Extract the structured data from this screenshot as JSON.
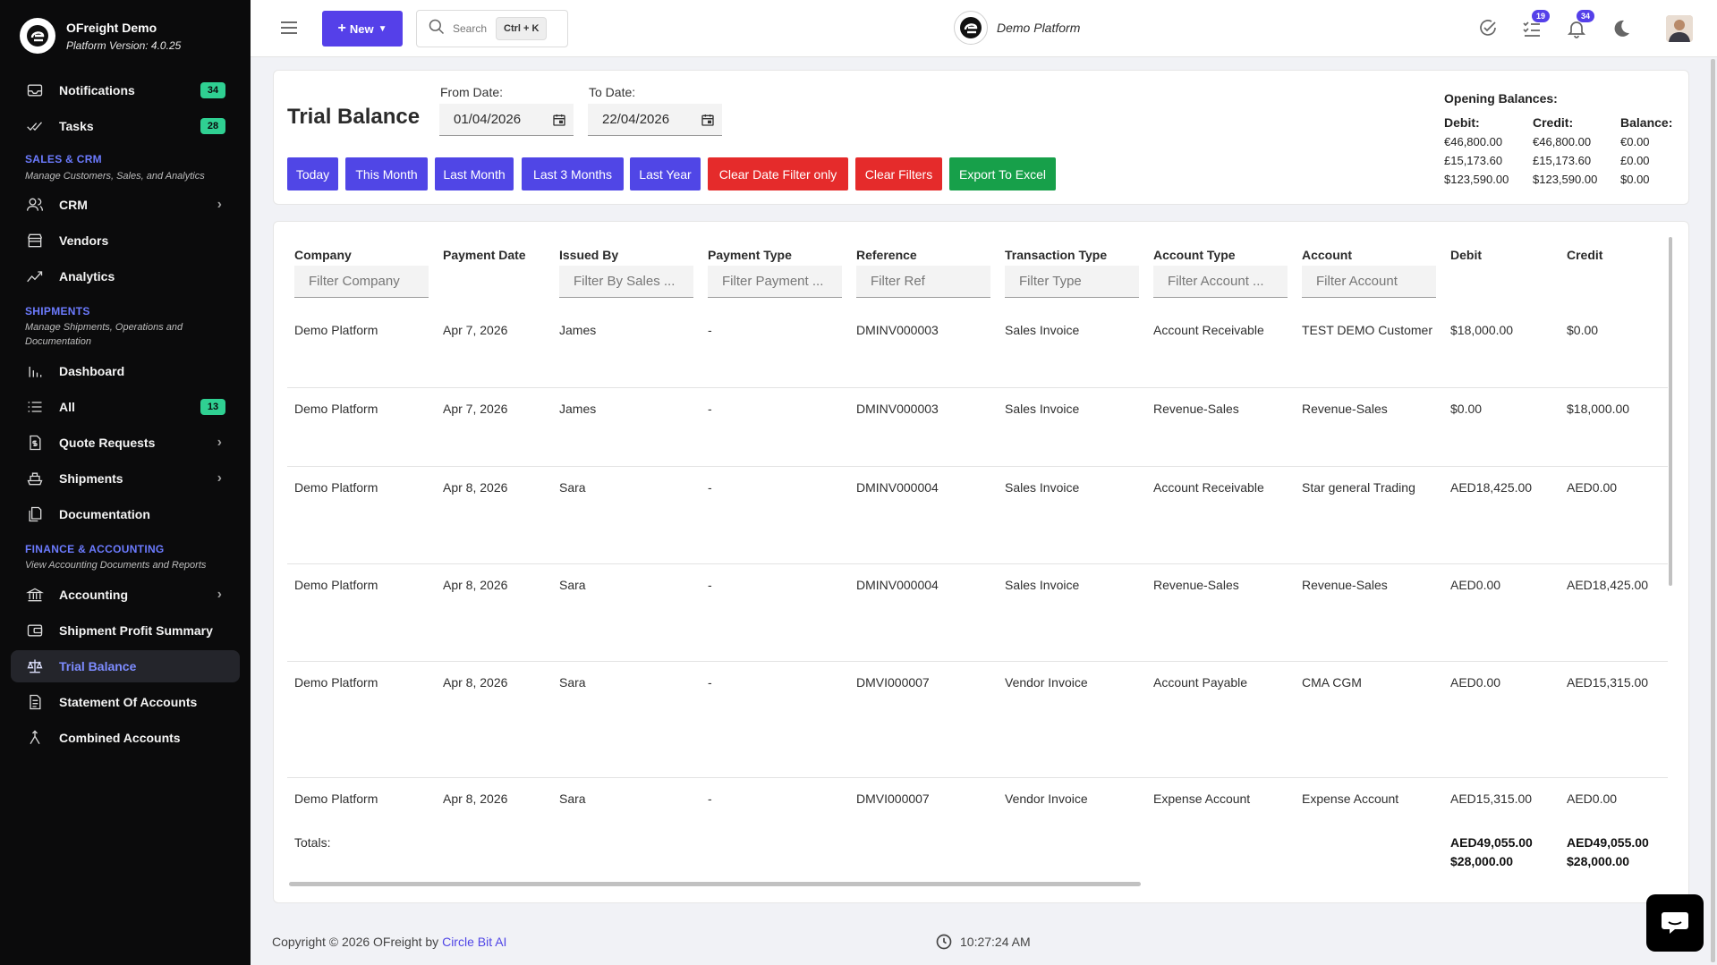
{
  "brand": {
    "name": "OFreight Demo",
    "version": "Platform Version: 4.0.25"
  },
  "sidebar": {
    "top": [
      {
        "label": "Notifications",
        "badge": "34"
      },
      {
        "label": "Tasks",
        "badge": "28"
      }
    ],
    "sales": {
      "title": "SALES & CRM",
      "subtitle": "Manage Customers, Sales, and Analytics",
      "items": [
        "CRM",
        "Vendors",
        "Analytics"
      ]
    },
    "shipments": {
      "title": "SHIPMENTS",
      "subtitle": "Manage Shipments, Operations and Documentation",
      "items": [
        "Dashboard",
        "All",
        "Quote Requests",
        "Shipments",
        "Documentation"
      ],
      "all_badge": "13"
    },
    "finance": {
      "title": "FINANCE & ACCOUNTING",
      "subtitle": "View Accounting Documents and Reports",
      "items": [
        "Accounting",
        "Shipment Profit Summary",
        "Trial Balance",
        "Statement Of Accounts",
        "Combined Accounts"
      ]
    }
  },
  "header": {
    "new_label": "New",
    "search_label": "Search",
    "search_shortcut": "Ctrl + K",
    "center_title": "Demo Platform",
    "tasks_badge": "19",
    "notifications_badge": "34"
  },
  "filters": {
    "title": "Trial Balance",
    "from_label": "From Date:",
    "from_value": "01/04/2026",
    "to_label": "To Date:",
    "to_value": "22/04/2026",
    "buttons": [
      "Today",
      "This Month",
      "Last Month",
      "Last 3 Months",
      "Last Year",
      "Clear Date Filter only",
      "Clear Filters",
      "Export To Excel"
    ]
  },
  "opening_balances": {
    "title": "Opening Balances:",
    "debit_label": "Debit:",
    "credit_label": "Credit:",
    "balance_label": "Balance:",
    "debit": [
      "€46,800.00",
      "£15,173.60",
      "$123,590.00"
    ],
    "credit": [
      "€46,800.00",
      "£15,173.60",
      "$123,590.00"
    ],
    "balance": [
      "€0.00",
      "£0.00",
      "$0.00"
    ]
  },
  "table": {
    "headers": [
      "Company",
      "Payment Date",
      "Issued By",
      "Payment Type",
      "Reference",
      "Transaction Type",
      "Account Type",
      "Account",
      "Debit",
      "Credit"
    ],
    "filters": [
      "Filter Company",
      "Filter By Sales ...",
      "Filter Payment ...",
      "Filter Ref",
      "Filter Type",
      "Filter Account ...",
      "Filter Account"
    ],
    "rows": [
      [
        "Demo Platform",
        "Apr 7, 2026",
        "James",
        "-",
        "DMINV000003",
        "Sales Invoice",
        "Account Receivable",
        "TEST DEMO Customer",
        "$18,000.00",
        "$0.00"
      ],
      [
        "Demo Platform",
        "Apr 7, 2026",
        "James",
        "-",
        "DMINV000003",
        "Sales Invoice",
        "Revenue-Sales",
        "Revenue-Sales",
        "$0.00",
        "$18,000.00"
      ],
      [
        "Demo Platform",
        "Apr 8, 2026",
        "Sara",
        "-",
        "DMINV000004",
        "Sales Invoice",
        "Account Receivable",
        "Star general Trading",
        "AED18,425.00",
        "AED0.00"
      ],
      [
        "Demo Platform",
        "Apr 8, 2026",
        "Sara",
        "-",
        "DMINV000004",
        "Sales Invoice",
        "Revenue-Sales",
        "Revenue-Sales",
        "AED0.00",
        "AED18,425.00"
      ],
      [
        "Demo Platform",
        "Apr 8, 2026",
        "Sara",
        "-",
        "DMVI000007",
        "Vendor Invoice",
        "Account Payable",
        "CMA CGM",
        "AED0.00",
        "AED15,315.00"
      ],
      [
        "Demo Platform",
        "Apr 8, 2026",
        "Sara",
        "-",
        "DMVI000007",
        "Vendor Invoice",
        "Expense Account",
        "Expense Account",
        "AED15,315.00",
        "AED0.00"
      ]
    ],
    "totals_label": "Totals:",
    "totals_debit": [
      "AED49,055.00",
      "$28,000.00"
    ],
    "totals_credit": [
      "AED49,055.00",
      "$28,000.00"
    ]
  },
  "footer": {
    "copyright": "Copyright © 2026 OFreight by",
    "link": "Circle Bit AI",
    "time": "10:27:24 AM"
  }
}
